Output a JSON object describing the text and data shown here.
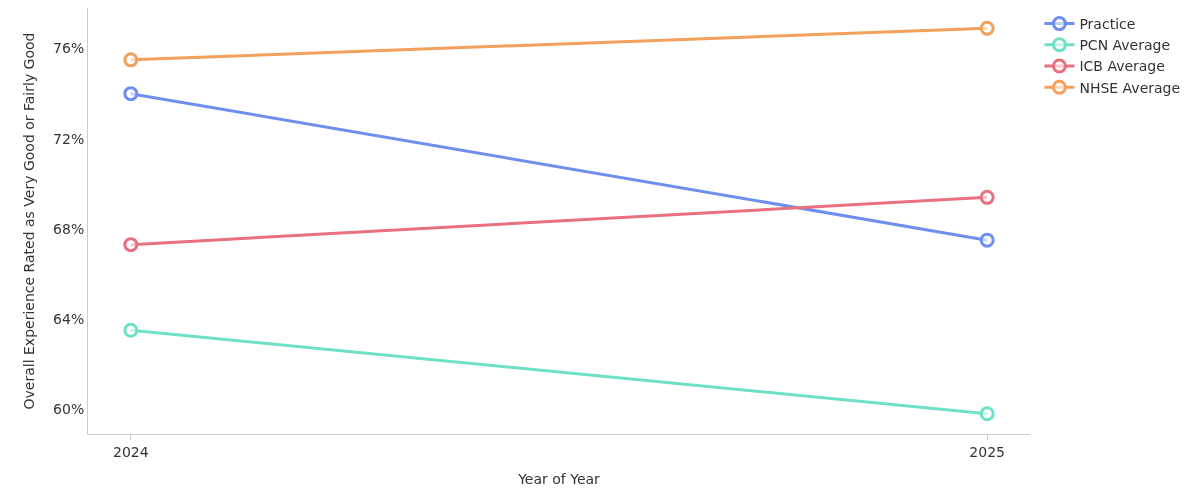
{
  "chart_data": {
    "type": "line",
    "xlabel": "Year of Year",
    "ylabel": "Overall Experience Rated as Very Good or Fairly Good",
    "x": [
      2024,
      2025
    ],
    "series": [
      {
        "name": "Practice",
        "color": "#6f8fef",
        "values": [
          74.0,
          67.5
        ]
      },
      {
        "name": "PCN Average",
        "color": "#6ee0c5",
        "values": [
          63.5,
          59.8
        ]
      },
      {
        "name": "ICB Average",
        "color": "#e8707f",
        "values": [
          67.3,
          69.4
        ]
      },
      {
        "name": "NHSE Average",
        "color": "#f2a05a",
        "values": [
          75.5,
          76.9
        ]
      }
    ],
    "xlim": [
      2023.95,
      2025.05
    ],
    "xticks": [
      2024,
      2025
    ],
    "ylim": [
      58.9,
      77.8
    ],
    "yticks": [
      {
        "value": 60,
        "label": "60%"
      },
      {
        "value": 64,
        "label": "64%"
      },
      {
        "value": 68,
        "label": "68%"
      },
      {
        "value": 72,
        "label": "72%"
      },
      {
        "value": 76,
        "label": "76%"
      }
    ],
    "legend": "top right",
    "marker": "circle",
    "line_style": "solid"
  }
}
